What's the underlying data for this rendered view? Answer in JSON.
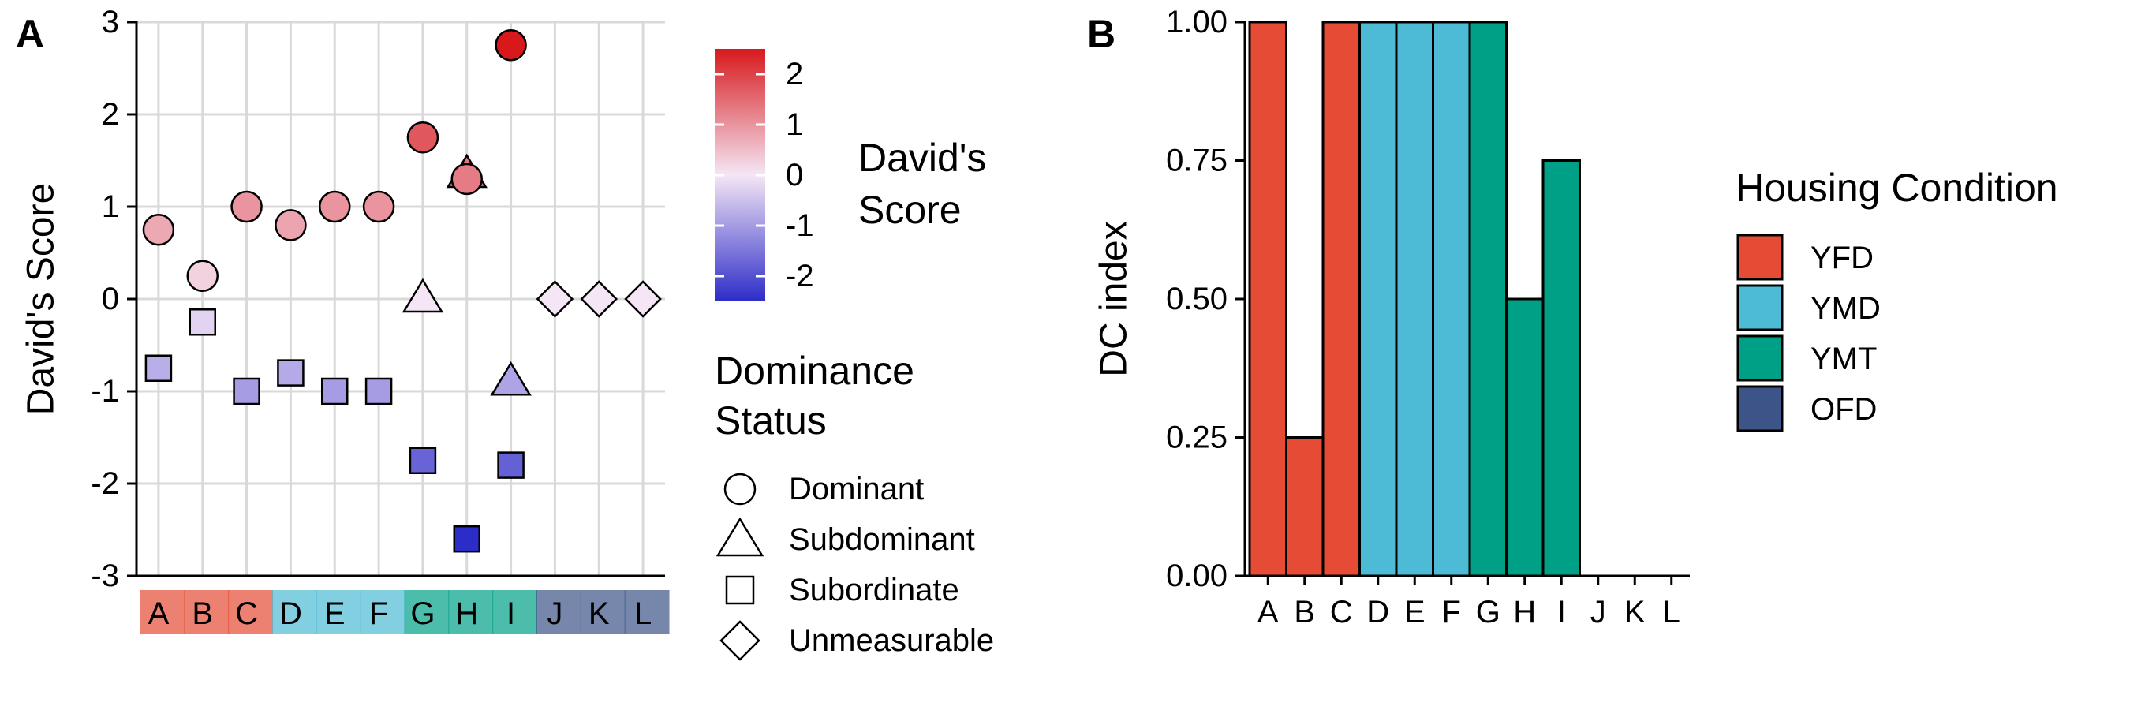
{
  "colors": {
    "YFD": "#E64B35",
    "YMD": "#4DBBD5",
    "YMT": "#00A087",
    "OFD": "#3C5488",
    "gradient_high": "#d7191c",
    "gradient_mid": "#f5e6f5",
    "gradient_low": "#2c2cc8"
  },
  "chart_data": [
    {
      "panel": "A",
      "type": "scatter",
      "ylabel": "David's Score",
      "xlabel": "",
      "ylim": [
        -3,
        3
      ],
      "y_ticks": [
        "3",
        "2",
        "1",
        "0",
        "-1",
        "-2",
        "-3"
      ],
      "categories": [
        "A",
        "B",
        "C",
        "D",
        "E",
        "F",
        "G",
        "H",
        "I",
        "J",
        "K",
        "L"
      ],
      "category_groups": [
        "YFD",
        "YFD",
        "YFD",
        "YMD",
        "YMD",
        "YMD",
        "YMT",
        "YMT",
        "YMT",
        "OFD",
        "OFD",
        "OFD"
      ],
      "grid": true,
      "points": [
        {
          "x": "A",
          "y": 0.75,
          "status": "Dominant"
        },
        {
          "x": "A",
          "y": -0.75,
          "status": "Subordinate"
        },
        {
          "x": "B",
          "y": 0.25,
          "status": "Dominant"
        },
        {
          "x": "B",
          "y": -0.25,
          "status": "Subordinate"
        },
        {
          "x": "C",
          "y": 1.0,
          "status": "Dominant"
        },
        {
          "x": "C",
          "y": -1.0,
          "status": "Subordinate"
        },
        {
          "x": "D",
          "y": 0.8,
          "status": "Dominant"
        },
        {
          "x": "D",
          "y": -0.8,
          "status": "Subordinate"
        },
        {
          "x": "E",
          "y": 1.0,
          "status": "Dominant"
        },
        {
          "x": "E",
          "y": -1.0,
          "status": "Subordinate"
        },
        {
          "x": "F",
          "y": 1.0,
          "status": "Dominant"
        },
        {
          "x": "F",
          "y": -1.0,
          "status": "Subordinate"
        },
        {
          "x": "G",
          "y": 1.75,
          "status": "Dominant"
        },
        {
          "x": "G",
          "y": 0.0,
          "status": "Subdominant"
        },
        {
          "x": "G",
          "y": -1.75,
          "status": "Subordinate"
        },
        {
          "x": "H",
          "y": 1.3,
          "status": "Dominant"
        },
        {
          "x": "H",
          "y": 1.35,
          "status": "Subdominant"
        },
        {
          "x": "H",
          "y": -2.6,
          "status": "Subordinate"
        },
        {
          "x": "I",
          "y": 2.75,
          "status": "Dominant"
        },
        {
          "x": "I",
          "y": -0.9,
          "status": "Subdominant"
        },
        {
          "x": "I",
          "y": -1.8,
          "status": "Subordinate"
        },
        {
          "x": "J",
          "y": 0.0,
          "status": "Unmeasurable"
        },
        {
          "x": "K",
          "y": 0.0,
          "status": "Unmeasurable"
        },
        {
          "x": "L",
          "y": 0.0,
          "status": "Unmeasurable"
        }
      ],
      "colorbar": {
        "title": [
          "David's",
          "Score"
        ],
        "ticks": [
          "2",
          "1",
          "0",
          "-1",
          "-2"
        ],
        "range": [
          -2.5,
          2.5
        ]
      },
      "shape_legend": {
        "title": [
          "Dominance",
          "Status"
        ],
        "items": [
          {
            "label": "Dominant",
            "shape": "circle"
          },
          {
            "label": "Subdominant",
            "shape": "triangle"
          },
          {
            "label": "Subordinate",
            "shape": "square"
          },
          {
            "label": "Unmeasurable",
            "shape": "diamond"
          }
        ]
      }
    },
    {
      "panel": "B",
      "type": "bar",
      "ylabel": "DC index",
      "xlabel": "",
      "ylim": [
        0,
        1
      ],
      "y_ticks": [
        "1.00",
        "0.75",
        "0.50",
        "0.25",
        "0.00"
      ],
      "categories": [
        "A",
        "B",
        "C",
        "D",
        "E",
        "F",
        "G",
        "H",
        "I",
        "J",
        "K",
        "L"
      ],
      "values": [
        1.0,
        0.25,
        1.0,
        1.0,
        1.0,
        1.0,
        1.0,
        0.5,
        0.75,
        null,
        null,
        null
      ],
      "groups": [
        "YFD",
        "YFD",
        "YFD",
        "YMD",
        "YMD",
        "YMD",
        "YMT",
        "YMT",
        "YMT",
        "OFD",
        "OFD",
        "OFD"
      ],
      "grid": false,
      "legend": {
        "title": "Housing Condition",
        "items": [
          {
            "label": "YFD",
            "color": "#E64B35"
          },
          {
            "label": "YMD",
            "color": "#4DBBD5"
          },
          {
            "label": "YMT",
            "color": "#00A087"
          },
          {
            "label": "OFD",
            "color": "#3C5488"
          }
        ]
      }
    }
  ]
}
